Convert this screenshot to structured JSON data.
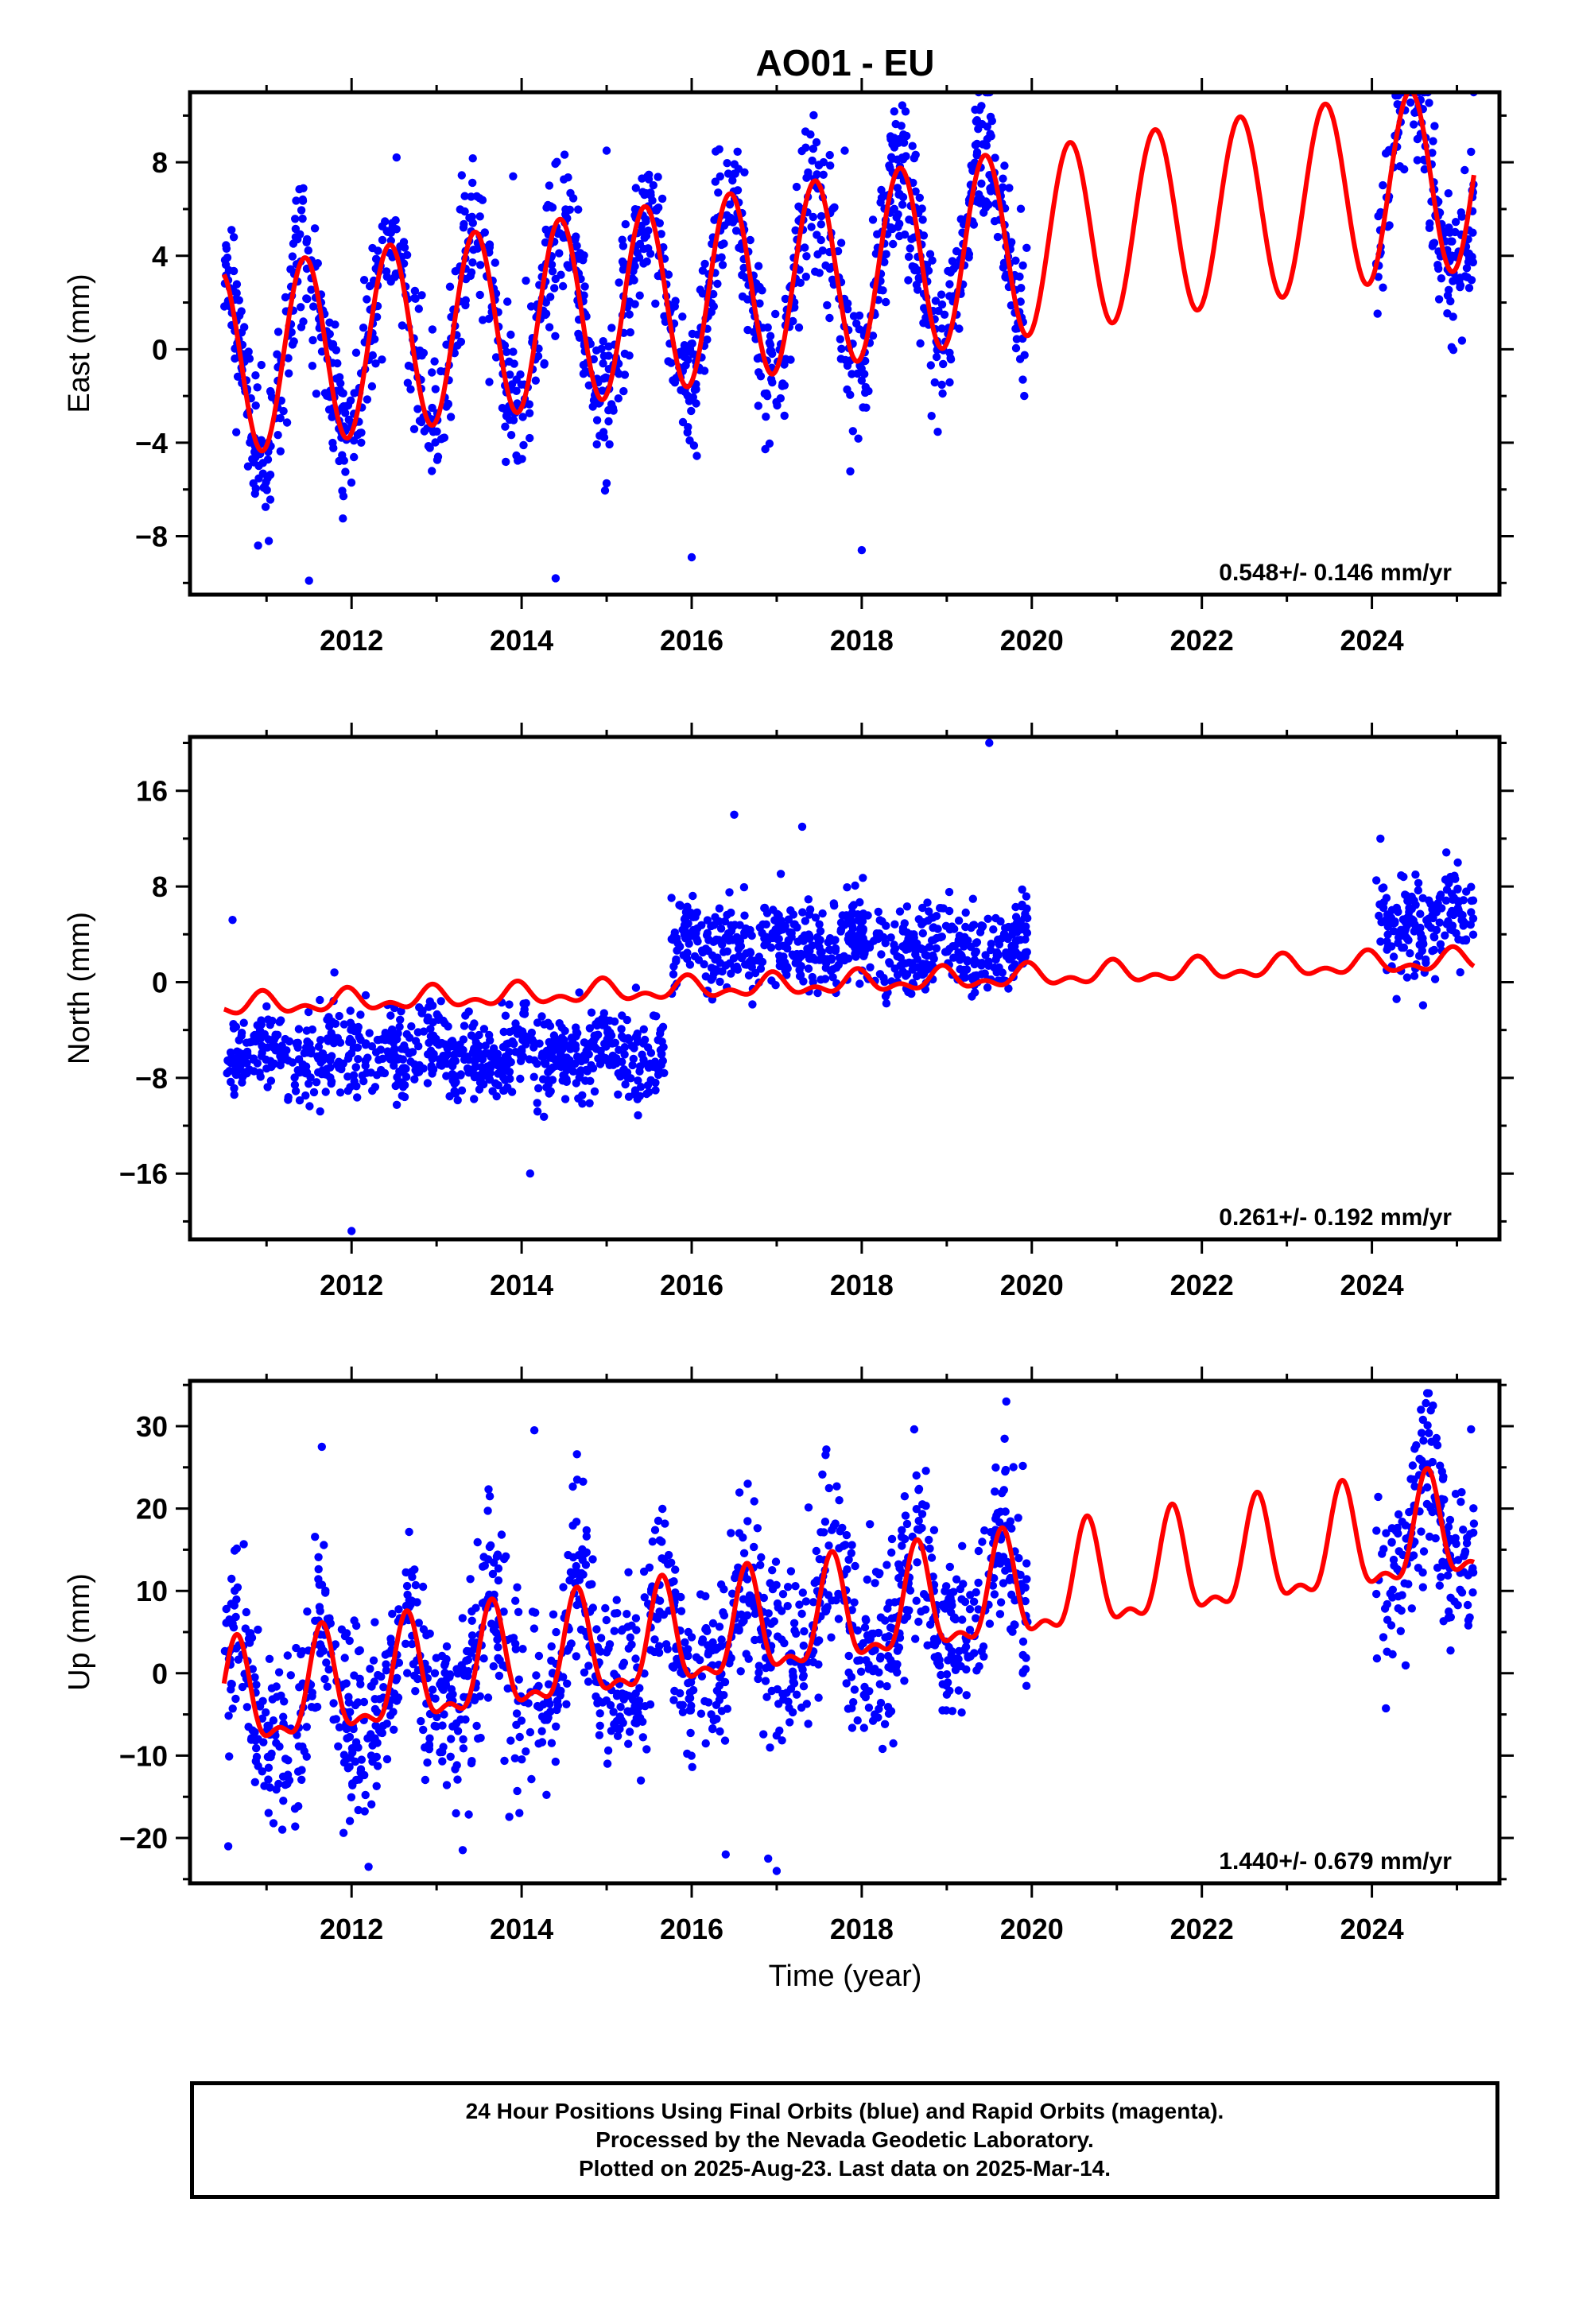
{
  "figure": {
    "title": "AO01 - EU",
    "x_axis_label": "Time (year)",
    "footer": [
      "24 Hour Positions Using Final Orbits (blue) and Rapid Orbits (magenta).",
      "Processed by the Nevada Geodetic Laboratory.",
      "Plotted on 2025-Aug-23. Last data on 2025-Mar-14."
    ]
  },
  "colors": {
    "observations": "#0000ff",
    "model": "#ff0000",
    "axes": "#000000"
  },
  "chart_data": [
    {
      "type": "scatter",
      "name": "east",
      "ylabel": "East (mm)",
      "xlim": [
        2010.1,
        2025.5
      ],
      "ylim": [
        -10.5,
        11
      ],
      "x_ticks": [
        2012,
        2014,
        2016,
        2018,
        2020,
        2022,
        2024
      ],
      "y_ticks": [
        -8,
        -4,
        0,
        4,
        8
      ],
      "rate_text": "0.548+/- 0.146 mm/yr",
      "model": {
        "offset_at_2010_5": -0.6,
        "trend_mm_per_yr": 0.548,
        "annual_amplitude": 4.0,
        "annual_phase_peak": 0.45,
        "steps": []
      },
      "observations": {
        "segments": [
          [
            2010.5,
            2019.95
          ],
          [
            2024.05,
            2025.2
          ]
        ],
        "scatter_sd": 1.6,
        "marker": "filled circle",
        "outliers": [
          [
            2010.9,
            -8.4
          ],
          [
            2011.5,
            -9.9
          ],
          [
            2014.4,
            -9.8
          ],
          [
            2015.0,
            8.5
          ],
          [
            2016.0,
            -8.9
          ],
          [
            2017.8,
            8.5
          ],
          [
            2018.0,
            -8.6
          ],
          [
            2013.9,
            7.4
          ],
          [
            2024.55,
            10.4
          ]
        ]
      },
      "grid": false
    },
    {
      "type": "scatter",
      "name": "north",
      "ylabel": "North (mm)",
      "xlim": [
        2010.1,
        2025.5
      ],
      "ylim": [
        -21.5,
        20.5
      ],
      "x_ticks": [
        2012,
        2014,
        2016,
        2018,
        2020,
        2022,
        2024
      ],
      "y_ticks": [
        -16,
        -8,
        0,
        8,
        16
      ],
      "rate_text": "0.261+/- 0.192 mm/yr",
      "model": {
        "offset_at_2010_5": -2.0,
        "trend_mm_per_yr": 0.261,
        "annual_amplitude": 0.7,
        "semiannual_amplitude": 0.5,
        "annual_phase_peak": 0.95,
        "steps": []
      },
      "observations": {
        "segments": [
          [
            2010.5,
            2015.7
          ],
          [
            2015.75,
            2019.95
          ],
          [
            2024.05,
            2025.2
          ]
        ],
        "segment_means": [
          -6.0,
          3.0,
          5.0
        ],
        "scatter_sd": 1.8,
        "marker": "filled circle",
        "outliers": [
          [
            2010.6,
            5.2
          ],
          [
            2012.0,
            -20.8
          ],
          [
            2016.5,
            14.0
          ],
          [
            2017.3,
            13.0
          ],
          [
            2019.5,
            20.0
          ],
          [
            2014.1,
            -16.0
          ],
          [
            2024.1,
            12.0
          ]
        ]
      },
      "grid": false
    },
    {
      "type": "scatter",
      "name": "up",
      "ylabel": "Up (mm)",
      "xlim": [
        2010.1,
        2025.5
      ],
      "ylim": [
        -25.5,
        35.5
      ],
      "x_ticks": [
        2012,
        2014,
        2016,
        2018,
        2020,
        2022,
        2024
      ],
      "y_ticks": [
        -20,
        -10,
        0,
        10,
        20,
        30
      ],
      "rate_text": "1.440+/- 0.679 mm/yr",
      "model": {
        "offset_at_2010_5": -4.0,
        "trend_mm_per_yr": 1.44,
        "annual_amplitude": 6.0,
        "semiannual_amplitude": 2.5,
        "annual_phase_peak": 0.65,
        "steps": []
      },
      "observations": {
        "segments": [
          [
            2010.5,
            2019.95
          ],
          [
            2024.05,
            2025.2
          ]
        ],
        "scatter_sd": 5.5,
        "marker": "filled circle",
        "outliers": [
          [
            2011.65,
            27.5
          ],
          [
            2014.15,
            29.5
          ],
          [
            2019.7,
            33.0
          ],
          [
            2024.65,
            34.0
          ],
          [
            2012.2,
            -23.5
          ],
          [
            2016.4,
            -22.0
          ],
          [
            2017.0,
            -24.0
          ],
          [
            2010.55,
            -21.0
          ],
          [
            2016.9,
            -22.5
          ]
        ]
      },
      "grid": false
    }
  ]
}
